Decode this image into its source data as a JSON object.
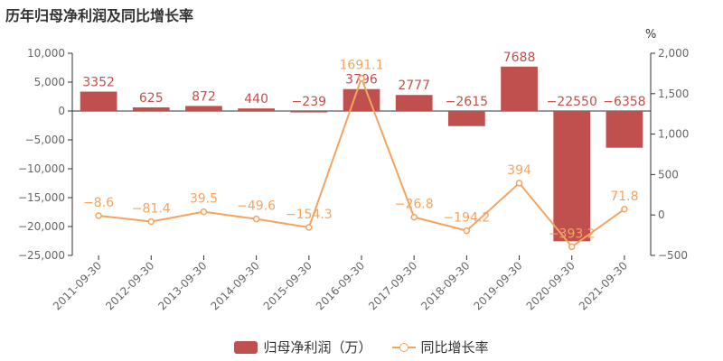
{
  "chart_data": {
    "type": "bar+line",
    "title": "历年归母净利润及同比增长率",
    "categories": [
      "2011-09-30",
      "2012-09-30",
      "2013-09-30",
      "2014-09-30",
      "2015-09-30",
      "2016-09-30",
      "2017-09-30",
      "2018-09-30",
      "2019-09-30",
      "2020-09-30",
      "2021-09-30"
    ],
    "series": [
      {
        "name": "归母净利润（万）",
        "type": "bar",
        "axis": "left",
        "color": "#c0504d",
        "values": [
          3352,
          625,
          872,
          440,
          -239,
          3796,
          2777,
          -2615,
          7688,
          -22550,
          -6358
        ],
        "labels": [
          "3352",
          "625",
          "872",
          "440",
          "−239",
          "3796",
          "2777",
          "−2615",
          "7688",
          "−22550",
          "−6358"
        ]
      },
      {
        "name": "同比增长率",
        "type": "line",
        "axis": "right",
        "color": "#f4a460",
        "values": [
          -8.6,
          -81.4,
          39.5,
          -49.6,
          -154.3,
          1691.1,
          -26.8,
          -194.2,
          394,
          -393.2,
          71.8
        ],
        "labels": [
          "−8.6",
          "−81.4",
          "39.5",
          "−49.6",
          "−154.3",
          "1691.1",
          "−26.8",
          "−194.2",
          "394",
          "−393.2",
          "71.8"
        ]
      }
    ],
    "left_axis": {
      "min": -25000,
      "max": 10000,
      "ticks": [
        10000,
        5000,
        0,
        -5000,
        -10000,
        -15000,
        -20000,
        -25000
      ],
      "tick_labels": [
        "10,000",
        "5,000",
        "0",
        "−5,000",
        "−10,000",
        "−15,000",
        "−20,000",
        "−25,000"
      ]
    },
    "right_axis": {
      "min": -500,
      "max": 2000,
      "unit": "%",
      "ticks": [
        2000,
        1500,
        1000,
        500,
        0,
        -500
      ],
      "tick_labels": [
        "2,000",
        "1,500",
        "1,000",
        "500",
        "0",
        "−500"
      ]
    },
    "grid": false,
    "legend_position": "bottom"
  }
}
